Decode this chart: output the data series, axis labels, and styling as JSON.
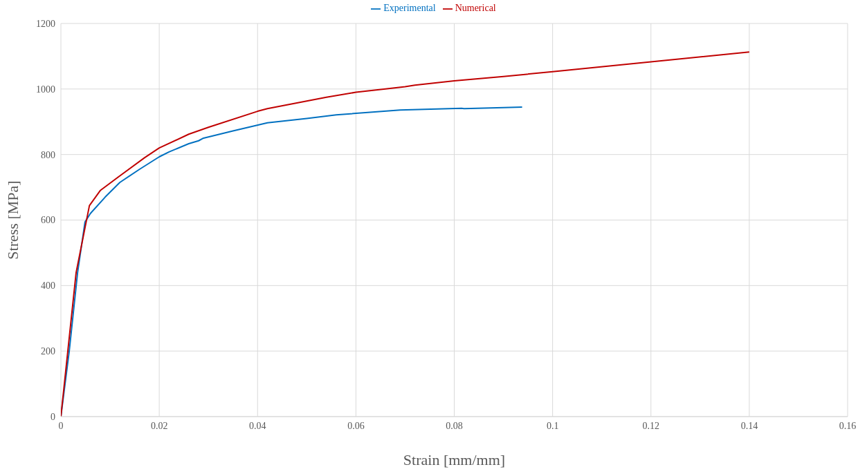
{
  "chart_data": {
    "type": "line",
    "xlabel": "Strain [mm/mm]",
    "ylabel": "Stress [MPa]",
    "xlim": [
      0,
      0.16
    ],
    "xticks": [
      0,
      0.02,
      0.04,
      0.06,
      0.08,
      0.1,
      0.12,
      0.14,
      0.16
    ],
    "ylim": [
      0,
      1200
    ],
    "yticks": [
      0,
      200,
      400,
      600,
      800,
      1000,
      1200
    ],
    "grid": true,
    "legend": "top",
    "marker": "none",
    "series": [
      {
        "name": "Experimental",
        "color": "#0070c0",
        "x": [
          0,
          0.0017,
          0.0034,
          0.0049,
          0.006,
          0.009,
          0.012,
          0.016,
          0.02,
          0.022,
          0.026,
          0.028,
          0.029,
          0.035,
          0.042,
          0.05,
          0.056,
          0.069,
          0.0815,
          0.082,
          0.09,
          0.0938
        ],
        "values": [
          0,
          200,
          440,
          594,
          620,
          670,
          715,
          755,
          793,
          808,
          833,
          842,
          850,
          872,
          897,
          910,
          921,
          936,
          941,
          940,
          943,
          945
        ]
      },
      {
        "name": "Numerical",
        "color": "#c00000",
        "x": [
          0,
          0.0031,
          0.0058,
          0.008,
          0.012,
          0.017,
          0.02,
          0.026,
          0.03,
          0.04,
          0.042,
          0.054,
          0.06,
          0.066,
          0.07,
          0.072,
          0.08,
          0.09,
          0.1,
          0.12,
          0.14
        ],
        "values": [
          0,
          440,
          644,
          690,
          735,
          790,
          820,
          862,
          883,
          932,
          940,
          975,
          990,
          1000,
          1007,
          1012,
          1025,
          1038,
          1053,
          1083,
          1113
        ]
      }
    ]
  }
}
